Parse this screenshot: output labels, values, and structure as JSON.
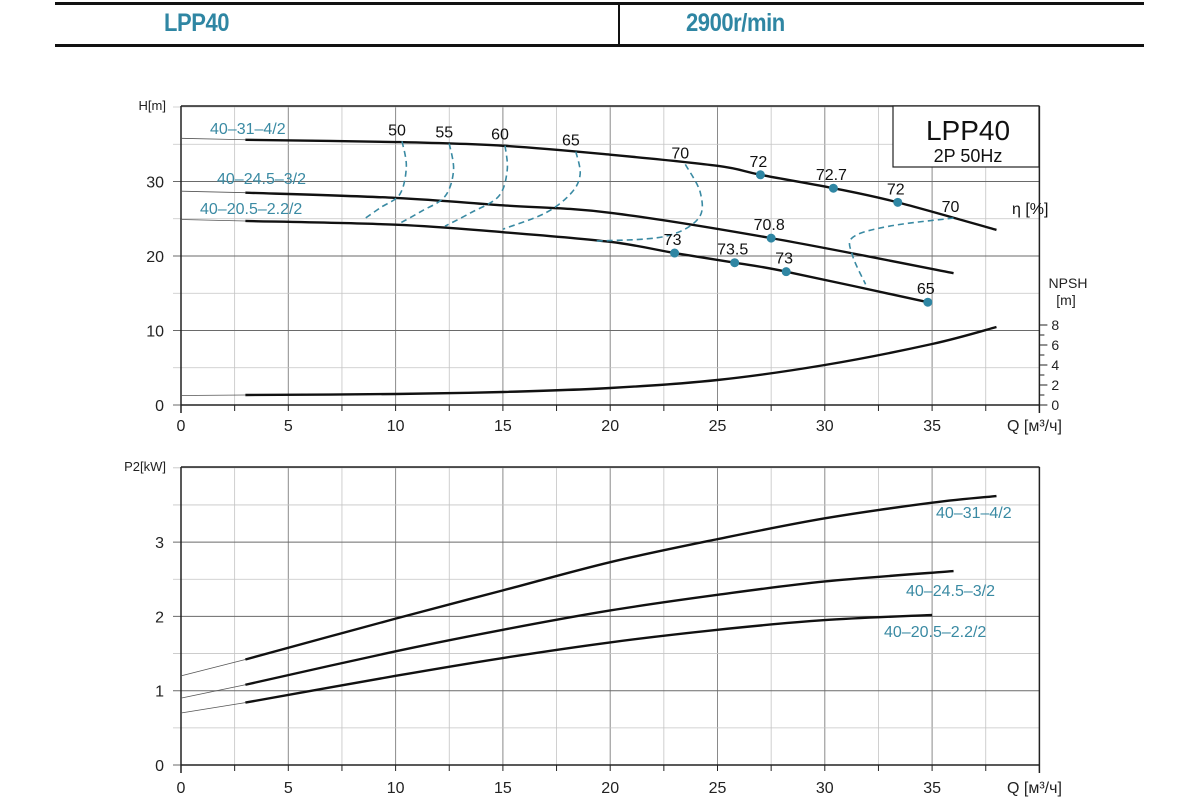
{
  "header": {
    "model": "LPP40",
    "speed": "2900r/min"
  },
  "colors": {
    "accent": "#2f86a3",
    "curve": "#111111",
    "grid": "#b8b8b8",
    "label": "#3a8aa3"
  },
  "chart_data": [
    {
      "type": "line",
      "title_box": {
        "model": "LPP40",
        "spec": "2P  50Hz"
      },
      "ylabel": "H[m]",
      "xlabel": "Q [м³/ч]",
      "xlim": [
        0,
        40
      ],
      "ylim": [
        0,
        40
      ],
      "xticks": [
        0,
        5,
        10,
        15,
        20,
        25,
        30,
        35
      ],
      "yticks": [
        0,
        10,
        20,
        30
      ],
      "grid": true,
      "series": [
        {
          "name": "40–31–4/2",
          "q": [
            0,
            3,
            10,
            15,
            20,
            25,
            27,
            30.4,
            33.4,
            38
          ],
          "h": [
            35.8,
            35.6,
            35.3,
            34.8,
            33.6,
            32.1,
            30.9,
            29.1,
            27.2,
            23.5
          ]
        },
        {
          "name": "40–24.5–3/2",
          "q": [
            0,
            3,
            10,
            15,
            20,
            27.5,
            36
          ],
          "h": [
            28.7,
            28.5,
            27.8,
            26.8,
            25.8,
            22.4,
            17.7
          ]
        },
        {
          "name": "40–20.5–2.2/2",
          "q": [
            0,
            3,
            10,
            15,
            20,
            23,
            25.8,
            28.2,
            34.8
          ],
          "h": [
            24.9,
            24.7,
            24.2,
            23.2,
            21.9,
            20.4,
            19.1,
            17.9,
            13.8
          ]
        }
      ],
      "efficiency_label": "η [%]",
      "efficiency_lines": [
        {
          "eta": "50",
          "q": [
            10.3,
            10.5,
            10.2,
            9.3,
            8.6
          ],
          "h": [
            35.4,
            32,
            28.3,
            26.5,
            25.1
          ]
        },
        {
          "eta": "55",
          "q": [
            12.5,
            12.7,
            12.3,
            11.2,
            10.2
          ],
          "h": [
            35.1,
            31.5,
            28,
            26,
            24.4
          ]
        },
        {
          "eta": "60",
          "q": [
            15.1,
            15.2,
            14.8,
            13.5,
            12.3
          ],
          "h": [
            34.8,
            31.5,
            28,
            25.8,
            24
          ]
        },
        {
          "eta": "65",
          "q": [
            18.4,
            18.6,
            18.2,
            17,
            15
          ],
          "h": [
            34,
            31,
            28.5,
            25.8,
            23.6
          ]
        },
        {
          "eta": "70",
          "q": [
            23.5,
            24.2,
            24.1,
            22.5,
            19.3
          ],
          "h": [
            32.3,
            28.5,
            25,
            22.6,
            22
          ]
        },
        {
          "eta": "70",
          "q": [
            36,
            33,
            31.3,
            31.3,
            31.9
          ],
          "h": [
            25.1,
            24,
            22.5,
            20,
            16.2
          ]
        }
      ],
      "efficiency_points": [
        {
          "label": "72",
          "q": 27,
          "h": 30.9
        },
        {
          "label": "72.7",
          "q": 30.4,
          "h": 29.1
        },
        {
          "label": "72",
          "q": 33.4,
          "h": 27.2
        },
        {
          "label": "70.8",
          "q": 27.5,
          "h": 22.4
        },
        {
          "label": "73",
          "q": 23,
          "h": 20.4
        },
        {
          "label": "73.5",
          "q": 25.8,
          "h": 19.1
        },
        {
          "label": "73",
          "q": 28.2,
          "h": 17.9
        },
        {
          "label": "65",
          "q": 34.8,
          "h": 13.8
        }
      ],
      "npsh": {
        "label": "NPSH",
        "unit": "[m]",
        "ylim": [
          0,
          8
        ],
        "yticks": [
          0,
          2,
          4,
          6,
          8
        ],
        "q": [
          0,
          3,
          10,
          15,
          20,
          25,
          30,
          35,
          38
        ],
        "values": [
          0.95,
          1.0,
          1.1,
          1.3,
          1.7,
          2.5,
          4.0,
          6.1,
          7.8
        ]
      }
    },
    {
      "type": "line",
      "ylabel": "P2[kW]",
      "xlabel": "Q [м³/ч]",
      "xlim": [
        0,
        40
      ],
      "ylim": [
        0,
        4
      ],
      "xticks": [
        0,
        5,
        10,
        15,
        20,
        25,
        30,
        35
      ],
      "yticks": [
        0,
        1,
        2,
        3
      ],
      "grid": true,
      "series": [
        {
          "name": "40–31–4/2",
          "q": [
            0,
            3,
            10,
            15,
            20,
            25,
            30,
            35,
            38
          ],
          "p": [
            1.2,
            1.42,
            1.97,
            2.35,
            2.73,
            3.04,
            3.32,
            3.53,
            3.62
          ]
        },
        {
          "name": "40–24.5–3/2",
          "q": [
            0,
            3,
            10,
            15,
            20,
            25,
            30,
            36
          ],
          "p": [
            0.9,
            1.08,
            1.53,
            1.82,
            2.08,
            2.29,
            2.47,
            2.61
          ]
        },
        {
          "name": "40–20.5–2.2/2",
          "q": [
            0,
            3,
            10,
            15,
            20,
            25,
            30,
            35
          ],
          "p": [
            0.7,
            0.84,
            1.2,
            1.44,
            1.65,
            1.82,
            1.95,
            2.02
          ]
        }
      ]
    }
  ]
}
